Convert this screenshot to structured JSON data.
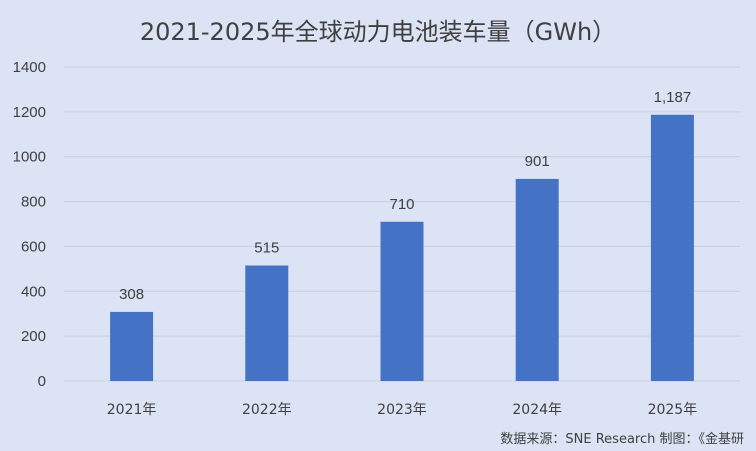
{
  "chart_data": {
    "type": "bar",
    "title": "2021-2025年全球动力电池装车量（GWh）",
    "categories": [
      "2021年",
      "2022年",
      "2023年",
      "2024年",
      "2025年"
    ],
    "values": [
      308,
      515,
      710,
      901,
      1187
    ],
    "value_labels": [
      "308",
      "515",
      "710",
      "901",
      "1,187"
    ],
    "ylim": [
      0,
      1400
    ],
    "yticks": [
      0,
      200,
      400,
      600,
      800,
      1000,
      1200,
      1400
    ],
    "grid": true,
    "bar_color": "#4472c4",
    "xlabel": "",
    "ylabel": ""
  },
  "footer": {
    "source_text": "数据来源：SNE Research    制图：《金基研"
  }
}
